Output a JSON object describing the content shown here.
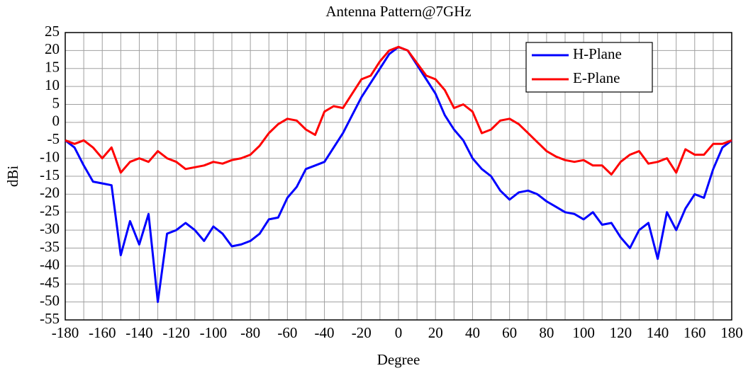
{
  "chart_data": {
    "type": "line",
    "title": "Antenna Pattern@7GHz",
    "x_label": "Degree",
    "y_label": "dBi",
    "x": [
      -180,
      -175,
      -170,
      -165,
      -160,
      -155,
      -150,
      -145,
      -140,
      -135,
      -130,
      -125,
      -120,
      -115,
      -110,
      -105,
      -100,
      -95,
      -90,
      -85,
      -80,
      -75,
      -70,
      -65,
      -60,
      -55,
      -50,
      -45,
      -40,
      -35,
      -30,
      -25,
      -20,
      -15,
      -10,
      -5,
      0,
      5,
      10,
      15,
      20,
      25,
      30,
      35,
      40,
      45,
      50,
      55,
      60,
      65,
      70,
      75,
      80,
      85,
      90,
      95,
      100,
      105,
      110,
      115,
      120,
      125,
      130,
      135,
      140,
      145,
      150,
      155,
      160,
      165,
      170,
      175,
      180
    ],
    "series": [
      {
        "name": "H-Plane",
        "color": "#0000ff",
        "values": [
          -5,
          -7,
          -12,
          -16.5,
          -17,
          -17.5,
          -37,
          -27.5,
          -34,
          -25.5,
          -50,
          -31,
          -30,
          -28,
          -30,
          -33,
          -29,
          -31,
          -34.5,
          -34,
          -33,
          -31,
          -27,
          -26.5,
          -21,
          -18,
          -13,
          -12,
          -11,
          -7,
          -3,
          2,
          7,
          11,
          15,
          19,
          21,
          20,
          16,
          12,
          8,
          2,
          -2,
          -5,
          -10,
          -13,
          -15,
          -19,
          -21.5,
          -19.5,
          -19,
          -20,
          -22,
          -23.5,
          -25,
          -25.5,
          -27,
          -25,
          -28.5,
          -28,
          -32,
          -35,
          -30,
          -28,
          -38,
          -25,
          -30,
          -24,
          -20,
          -21,
          -13,
          -7,
          -5
        ]
      },
      {
        "name": "E-Plane",
        "color": "#ff0000",
        "values": [
          -5,
          -6,
          -5,
          -7,
          -10,
          -7,
          -14,
          -11,
          -10,
          -11,
          -8,
          -10,
          -11,
          -13,
          -12.5,
          -12,
          -11,
          -11.5,
          -10.5,
          -10,
          -9,
          -6.5,
          -3,
          -0.5,
          1,
          0.5,
          -2,
          -3.5,
          3,
          4.5,
          4,
          8,
          12,
          13,
          17,
          20,
          21,
          20,
          16.5,
          13,
          12,
          9,
          4,
          5,
          3,
          -3,
          -2,
          0.5,
          1,
          -0.5,
          -3,
          -5.5,
          -8,
          -9.5,
          -10.5,
          -11,
          -10.5,
          -12,
          -12,
          -14.5,
          -11,
          -9,
          -8,
          -11.5,
          -11,
          -10,
          -14,
          -7.5,
          -9,
          -9,
          -6,
          -6,
          -5
        ]
      }
    ],
    "xlim": [
      -180,
      180
    ],
    "xticks": [
      -180,
      -160,
      -140,
      -120,
      -100,
      -80,
      -60,
      -40,
      -20,
      0,
      20,
      40,
      60,
      80,
      100,
      120,
      140,
      160,
      180
    ],
    "ylim": [
      -55,
      25
    ],
    "yticks": [
      -55,
      -50,
      -45,
      -40,
      -35,
      -30,
      -25,
      -20,
      -15,
      -10,
      -5,
      0,
      5,
      10,
      15,
      20,
      25
    ],
    "grid": true,
    "x_minor_grid": true,
    "legend": "upper right"
  }
}
